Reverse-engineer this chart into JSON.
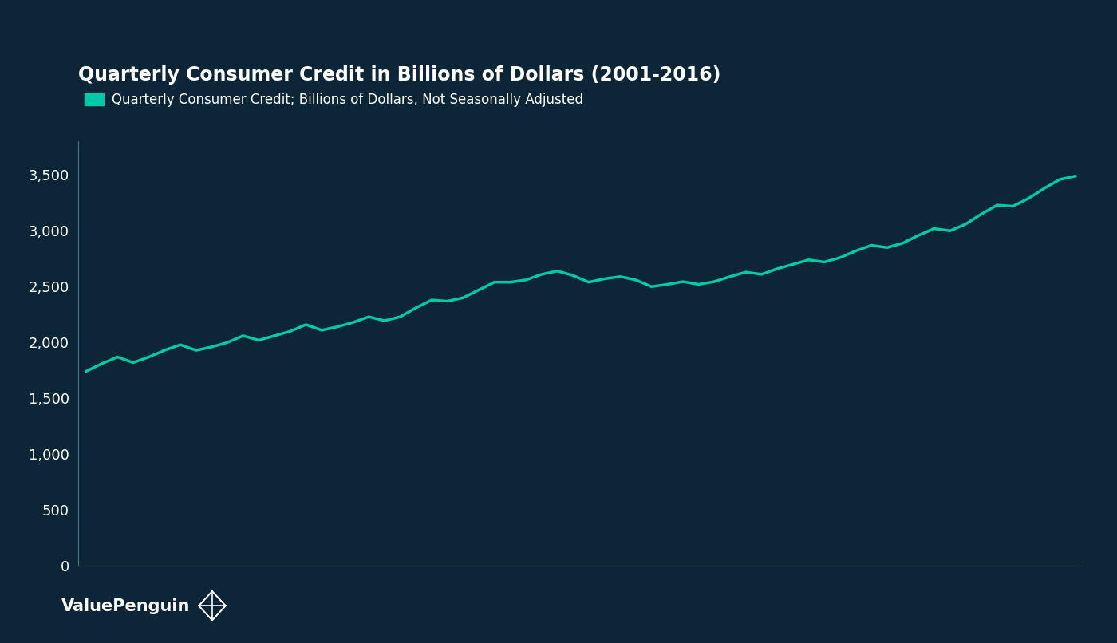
{
  "title": "Quarterly Consumer Credit in Billions of Dollars (2001-2016)",
  "legend_label": "Quarterly Consumer Credit; Billions of Dollars, Not Seasonally Adjusted",
  "background_color": "#0c2537",
  "line_color": "#00c9a7",
  "text_color": "#ffffff",
  "axis_color": "#4a7090",
  "watermark": "ValuePenguin",
  "ylim": [
    0,
    3800
  ],
  "yticks": [
    0,
    500,
    1000,
    1500,
    2000,
    2500,
    3000,
    3500
  ],
  "values": [
    1741,
    1810,
    1870,
    1820,
    1870,
    1930,
    1980,
    1930,
    1960,
    2000,
    2060,
    2020,
    2060,
    2100,
    2160,
    2110,
    2140,
    2180,
    2230,
    2195,
    2230,
    2310,
    2380,
    2370,
    2400,
    2470,
    2540,
    2540,
    2560,
    2610,
    2640,
    2600,
    2540,
    2570,
    2590,
    2560,
    2500,
    2520,
    2545,
    2520,
    2545,
    2590,
    2630,
    2610,
    2660,
    2700,
    2740,
    2720,
    2760,
    2820,
    2870,
    2850,
    2890,
    2960,
    3020,
    3000,
    3060,
    3150,
    3230,
    3220,
    3290,
    3380,
    3460,
    3490
  ],
  "title_fontsize": 17,
  "legend_fontsize": 12,
  "tick_fontsize": 13,
  "watermark_fontsize": 15,
  "line_width": 2.5
}
